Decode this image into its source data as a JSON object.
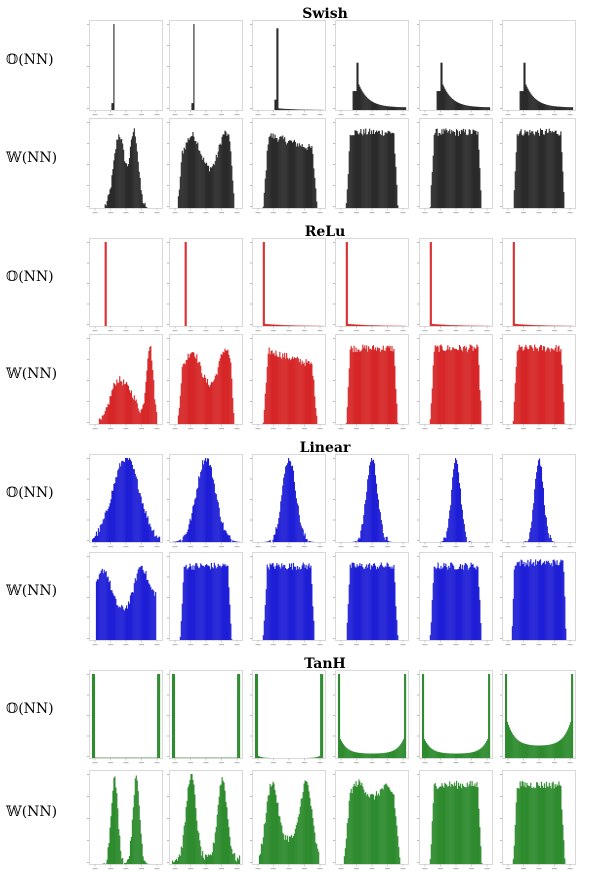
{
  "figure": {
    "sections": [
      {
        "title": "Swish",
        "color": "#2b2b2b",
        "rows": [
          {
            "label": "𝕆(NN)",
            "kind": "output",
            "shapes": [
              "spike-left",
              "spike-left",
              "spike-left-tail",
              "spike-tail",
              "spike-tail",
              "spike-tail"
            ]
          },
          {
            "label": "𝕎(NN)",
            "kind": "weight",
            "shapes": [
              "bimodal-narrow",
              "bimodal",
              "flat-skew",
              "flat",
              "flat",
              "flat"
            ]
          }
        ]
      },
      {
        "title": "ReLu",
        "color": "#d62728",
        "rows": [
          {
            "label": "𝕆(NN)",
            "kind": "output",
            "shapes": [
              "spike-only",
              "spike-only",
              "spike-tail-small",
              "spike-tail-small",
              "spike-tail-small",
              "spike-tail-small"
            ]
          },
          {
            "label": "𝕎(NN)",
            "kind": "weight",
            "shapes": [
              "bimodal-right",
              "bimodal",
              "flat-skew",
              "flat",
              "flat",
              "flat"
            ]
          }
        ]
      },
      {
        "title": "Linear",
        "color": "#1f1fd6",
        "rows": [
          {
            "label": "𝕆(NN)",
            "kind": "output",
            "shapes": [
              "gauss-wide",
              "gauss-mid",
              "gauss-narrow",
              "gauss-narrower",
              "gauss-narrowest",
              "gauss-narrowest"
            ]
          },
          {
            "label": "𝕎(NN)",
            "kind": "weight",
            "shapes": [
              "bimodal-low",
              "flat",
              "flat",
              "flat",
              "flat",
              "flat-tall"
            ]
          }
        ]
      },
      {
        "title": "TanH",
        "color": "#2e8b2e",
        "rows": [
          {
            "label": "𝕆(NN)",
            "kind": "output",
            "shapes": [
              "u-edges",
              "u-edges",
              "u-shallow",
              "u-bowl",
              "u-bowl",
              "u-deep"
            ]
          },
          {
            "label": "𝕎(NN)",
            "kind": "weight",
            "shapes": [
              "twin-peaks",
              "twin-peaks-wide",
              "twin-peaks-merge",
              "bimodal-top",
              "flat",
              "flat"
            ]
          }
        ]
      }
    ]
  },
  "chart_data": {
    "type": "bar",
    "description_grid": "4 sections x 2 rows x 6 histogram panels",
    "row_labels": [
      "𝕆(NN)",
      "𝕎(NN)"
    ],
    "section_titles": [
      "Swish",
      "ReLu",
      "Linear",
      "TanH"
    ]
  }
}
